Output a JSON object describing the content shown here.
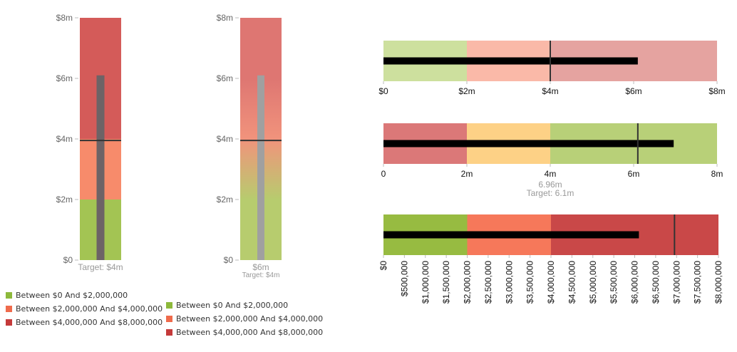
{
  "chart_data": [
    {
      "type": "bullet",
      "orientation": "vertical",
      "value": 6100000,
      "target": 3950000,
      "ranges": [
        2000000,
        4000000,
        8000000
      ],
      "range_colors": [
        "#a3c453",
        "#f78b6b",
        "#d45b59"
      ],
      "bar_color": "#6d6366",
      "axis": {
        "min": 0,
        "max": 8000000,
        "ticks": [
          "$0",
          "$2m",
          "$4m",
          "$6m",
          "$8m"
        ]
      },
      "caption": "Target: $4m",
      "legend": [
        "Between $0 And $2,000,000",
        "Between $2,000,000 And $4,000,000",
        "Between $4,000,000 And $8,000,000"
      ],
      "legend_colors": [
        "#8db93b",
        "#ef6b4c",
        "#c53a3a"
      ]
    },
    {
      "type": "bullet",
      "orientation": "vertical",
      "value": 6100000,
      "target": 3950000,
      "gradient_colors": [
        "#b7cc6e",
        "#f1937c",
        "#de7672"
      ],
      "bar_color": "#a0a0a0",
      "axis": {
        "min": 0,
        "max": 8000000,
        "ticks": [
          "$0",
          "$2m",
          "$4m",
          "$6m",
          "$8m"
        ]
      },
      "value_label": "$6m",
      "caption": "Target: $4m",
      "legend": [
        "Between $0 And $2,000,000",
        "Between $2,000,000 And $4,000,000",
        "Between $4,000,000 And $8,000,000"
      ],
      "legend_colors": [
        "#8db93b",
        "#ef6b4c",
        "#c53a3a"
      ]
    },
    {
      "type": "bullet",
      "orientation": "horizontal",
      "value": 6100000,
      "target": 4000000,
      "ranges": [
        2000000,
        4000000,
        8000000
      ],
      "range_colors": [
        "#cde09e",
        "#fab9a8",
        "#e5a3a0"
      ],
      "axis": {
        "min": 0,
        "max": 8000000,
        "ticks": [
          "$0",
          "$2m",
          "$4m",
          "$6m",
          "$8m"
        ]
      }
    },
    {
      "type": "bullet",
      "orientation": "horizontal",
      "value": 6960000,
      "target": 6100000,
      "ranges": [
        2000000,
        4000000,
        8000000
      ],
      "range_colors": [
        "#db7878",
        "#fdd186",
        "#b8d078"
      ],
      "axis": {
        "min": 0,
        "max": 8000000,
        "ticks": [
          "0",
          "2m",
          "4m",
          "6m",
          "8m"
        ]
      },
      "value_label": "6.96m",
      "caption": "Target: 6.1m"
    },
    {
      "type": "bullet",
      "orientation": "horizontal",
      "value": 6100000,
      "target": 6950000,
      "ranges": [
        2000000,
        4000000,
        8000000
      ],
      "range_colors": [
        "#97bb41",
        "#f6785a",
        "#c94848"
      ],
      "axis": {
        "min": 0,
        "max": 8000000,
        "ticks": [
          "$0",
          "$500,000",
          "$1,000,000",
          "$1,500,000",
          "$2,000,000",
          "$2,500,000",
          "$3,000,000",
          "$3,500,000",
          "$4,000,000",
          "$4,500,000",
          "$5,000,000",
          "$5,500,000",
          "$6,000,000",
          "$6,500,000",
          "$7,000,000",
          "$7,500,000",
          "$8,000,000"
        ]
      }
    }
  ]
}
